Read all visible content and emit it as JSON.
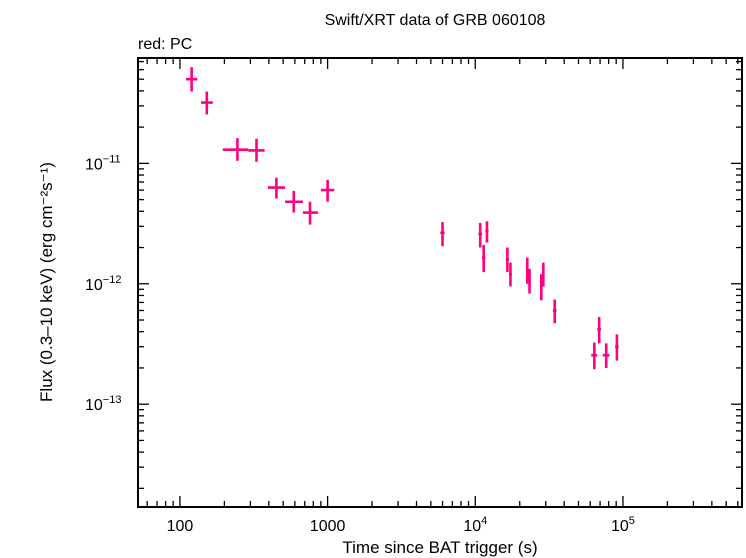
{
  "chart_data": {
    "type": "scatter",
    "title": "Swift/XRT data of GRB 060108",
    "subtitle": "red: PC",
    "xlabel": "Time since BAT trigger (s)",
    "ylabel": "Flux (0.3–10 keV) (erg cm⁻²s⁻¹)",
    "x_scale": "log",
    "y_scale": "log",
    "xlim": [
      52,
      640000
    ],
    "ylim": [
      1.4e-14,
      7.5e-11
    ],
    "x_ticks": [
      {
        "value": 100,
        "label": "100"
      },
      {
        "value": 1000,
        "label": "1000"
      },
      {
        "value": 10000,
        "base": "10",
        "exp": "4"
      },
      {
        "value": 100000,
        "base": "10",
        "exp": "5"
      }
    ],
    "y_ticks": [
      {
        "value": 1e-11,
        "base": "10",
        "exp": "−11"
      },
      {
        "value": 1e-12,
        "base": "10",
        "exp": "−12"
      },
      {
        "value": 1e-13,
        "base": "10",
        "exp": "−13"
      }
    ],
    "grid": false,
    "series": [
      {
        "color": "#ff0080",
        "points": [
          {
            "x": 120,
            "xlo": 110,
            "xhi": 131,
            "y": 5e-11,
            "ylo": 3.95e-11,
            "yhi": 6.3e-11
          },
          {
            "x": 152,
            "xlo": 139,
            "xhi": 167,
            "y": 3.2e-11,
            "ylo": 2.55e-11,
            "yhi": 3.95e-11
          },
          {
            "x": 245,
            "xlo": 195,
            "xhi": 290,
            "y": 1.3e-11,
            "ylo": 1.05e-11,
            "yhi": 1.62e-11
          },
          {
            "x": 330,
            "xlo": 290,
            "xhi": 375,
            "y": 1.28e-11,
            "ylo": 1.03e-11,
            "yhi": 1.6e-11
          },
          {
            "x": 450,
            "xlo": 395,
            "xhi": 515,
            "y": 6.3e-12,
            "ylo": 5.1e-12,
            "yhi": 7.6e-12
          },
          {
            "x": 590,
            "xlo": 515,
            "xhi": 680,
            "y": 4.8e-12,
            "ylo": 3.9e-12,
            "yhi": 5.9e-12
          },
          {
            "x": 760,
            "xlo": 680,
            "xhi": 860,
            "y": 3.9e-12,
            "ylo": 3.1e-12,
            "yhi": 4.8e-12
          },
          {
            "x": 1000,
            "xlo": 900,
            "xhi": 1110,
            "y": 6e-12,
            "ylo": 4.8e-12,
            "yhi": 7.3e-12
          },
          {
            "x": 6000,
            "xlo": 5800,
            "xhi": 6200,
            "y": 2.65e-12,
            "ylo": 2.05e-12,
            "yhi": 3.25e-12
          },
          {
            "x": 10800,
            "xlo": 10500,
            "xhi": 11100,
            "y": 2.6e-12,
            "ylo": 2e-12,
            "yhi": 3.2e-12
          },
          {
            "x": 11400,
            "xlo": 11100,
            "xhi": 11700,
            "y": 1.65e-12,
            "ylo": 1.25e-12,
            "yhi": 2.1e-12
          },
          {
            "x": 12000,
            "xlo": 11700,
            "xhi": 12300,
            "y": 2.75e-12,
            "ylo": 2.2e-12,
            "yhi": 3.3e-12
          },
          {
            "x": 16500,
            "xlo": 16100,
            "xhi": 16900,
            "y": 1.6e-12,
            "ylo": 1.25e-12,
            "yhi": 2e-12
          },
          {
            "x": 17300,
            "xlo": 16900,
            "xhi": 17700,
            "y": 1.2e-12,
            "ylo": 9.5e-13,
            "yhi": 1.5e-12
          },
          {
            "x": 22500,
            "xlo": 22000,
            "xhi": 23000,
            "y": 1.3e-12,
            "ylo": 1e-12,
            "yhi": 1.65e-12
          },
          {
            "x": 23300,
            "xlo": 23000,
            "xhi": 23700,
            "y": 1.05e-12,
            "ylo": 8.3e-13,
            "yhi": 1.33e-12
          },
          {
            "x": 28000,
            "xlo": 27500,
            "xhi": 28500,
            "y": 9.5e-13,
            "ylo": 7.3e-13,
            "yhi": 1.2e-12
          },
          {
            "x": 28900,
            "xlo": 28500,
            "xhi": 29300,
            "y": 1.2e-12,
            "ylo": 9.5e-13,
            "yhi": 1.5e-12
          },
          {
            "x": 34500,
            "xlo": 33500,
            "xhi": 35500,
            "y": 6e-13,
            "ylo": 4.7e-13,
            "yhi": 7.4e-13
          },
          {
            "x": 64000,
            "xlo": 61000,
            "xhi": 67000,
            "y": 2.55e-13,
            "ylo": 1.95e-13,
            "yhi": 3.25e-13
          },
          {
            "x": 69000,
            "xlo": 67000,
            "xhi": 71000,
            "y": 4.2e-13,
            "ylo": 3.2e-13,
            "yhi": 5.3e-13
          },
          {
            "x": 77000,
            "xlo": 73000,
            "xhi": 81000,
            "y": 2.55e-13,
            "ylo": 2e-13,
            "yhi": 3.2e-13
          },
          {
            "x": 91000,
            "xlo": 88500,
            "xhi": 93500,
            "y": 3e-13,
            "ylo": 2.3e-13,
            "yhi": 3.8e-13
          }
        ]
      }
    ]
  }
}
